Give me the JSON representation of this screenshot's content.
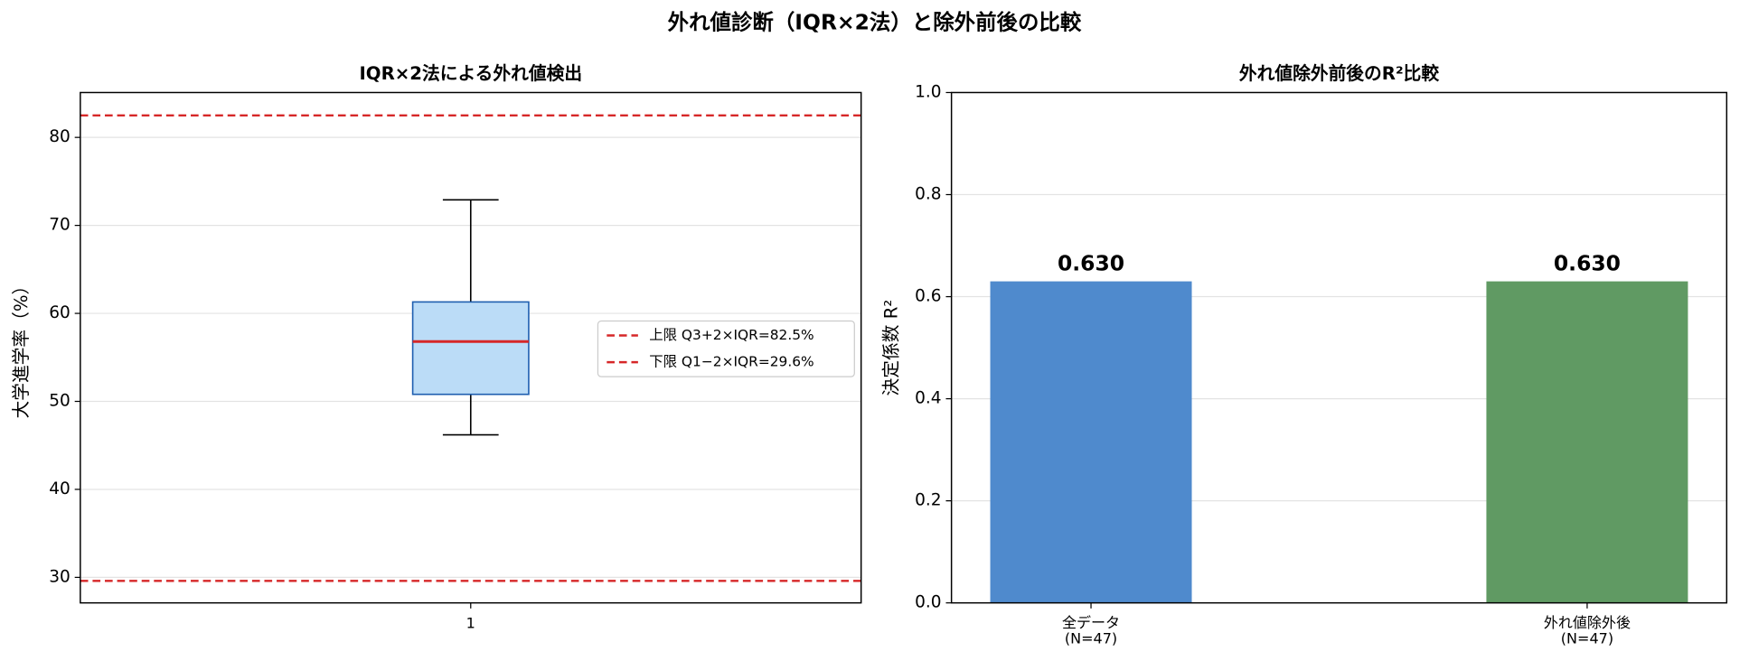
{
  "title": "外れ値診断（IQR×2法）と除外前後の比較",
  "chart_data": [
    {
      "type": "box",
      "title": "IQR×2法による外れ値検出",
      "y_label": "大学進学率（%）",
      "categories": [
        "1"
      ],
      "whislo": [
        46.2
      ],
      "q1": [
        50.8
      ],
      "med": [
        56.8
      ],
      "q3": [
        61.3
      ],
      "whishi": [
        72.9
      ],
      "box_color": "#bbdcf7",
      "edge_color": "#1f5fb0",
      "median_color": "#d62728",
      "lines": [
        {
          "name": "上限 Q3+2×IQR=82.5%",
          "value": 82.5,
          "color": "#d62728"
        },
        {
          "name": "下限 Q1−2×IQR=29.6%",
          "value": 29.6,
          "color": "#d62728"
        }
      ],
      "ylim": [
        27.1,
        85.1
      ],
      "yticks": [
        30,
        40,
        50,
        60,
        70,
        80
      ],
      "grid": true,
      "legend": "right"
    },
    {
      "type": "bar",
      "title": "外れ値除外前後のR²比較",
      "y_label": "決定係数 R²",
      "categories": [
        "全データ\n(N=47)",
        "外れ値除外後\n(N=47)"
      ],
      "values": [
        0.63,
        0.63
      ],
      "value_labels": [
        "0.630",
        "0.630"
      ],
      "colors": [
        "#4f8acd",
        "#609a63"
      ],
      "ylim": [
        0,
        1
      ],
      "yticks": [
        {
          "value": 0,
          "label": "0.0"
        },
        0.2,
        0.4,
        0.6,
        0.8,
        {
          "value": 1,
          "label": "1.0"
        }
      ],
      "grid": true
    }
  ]
}
